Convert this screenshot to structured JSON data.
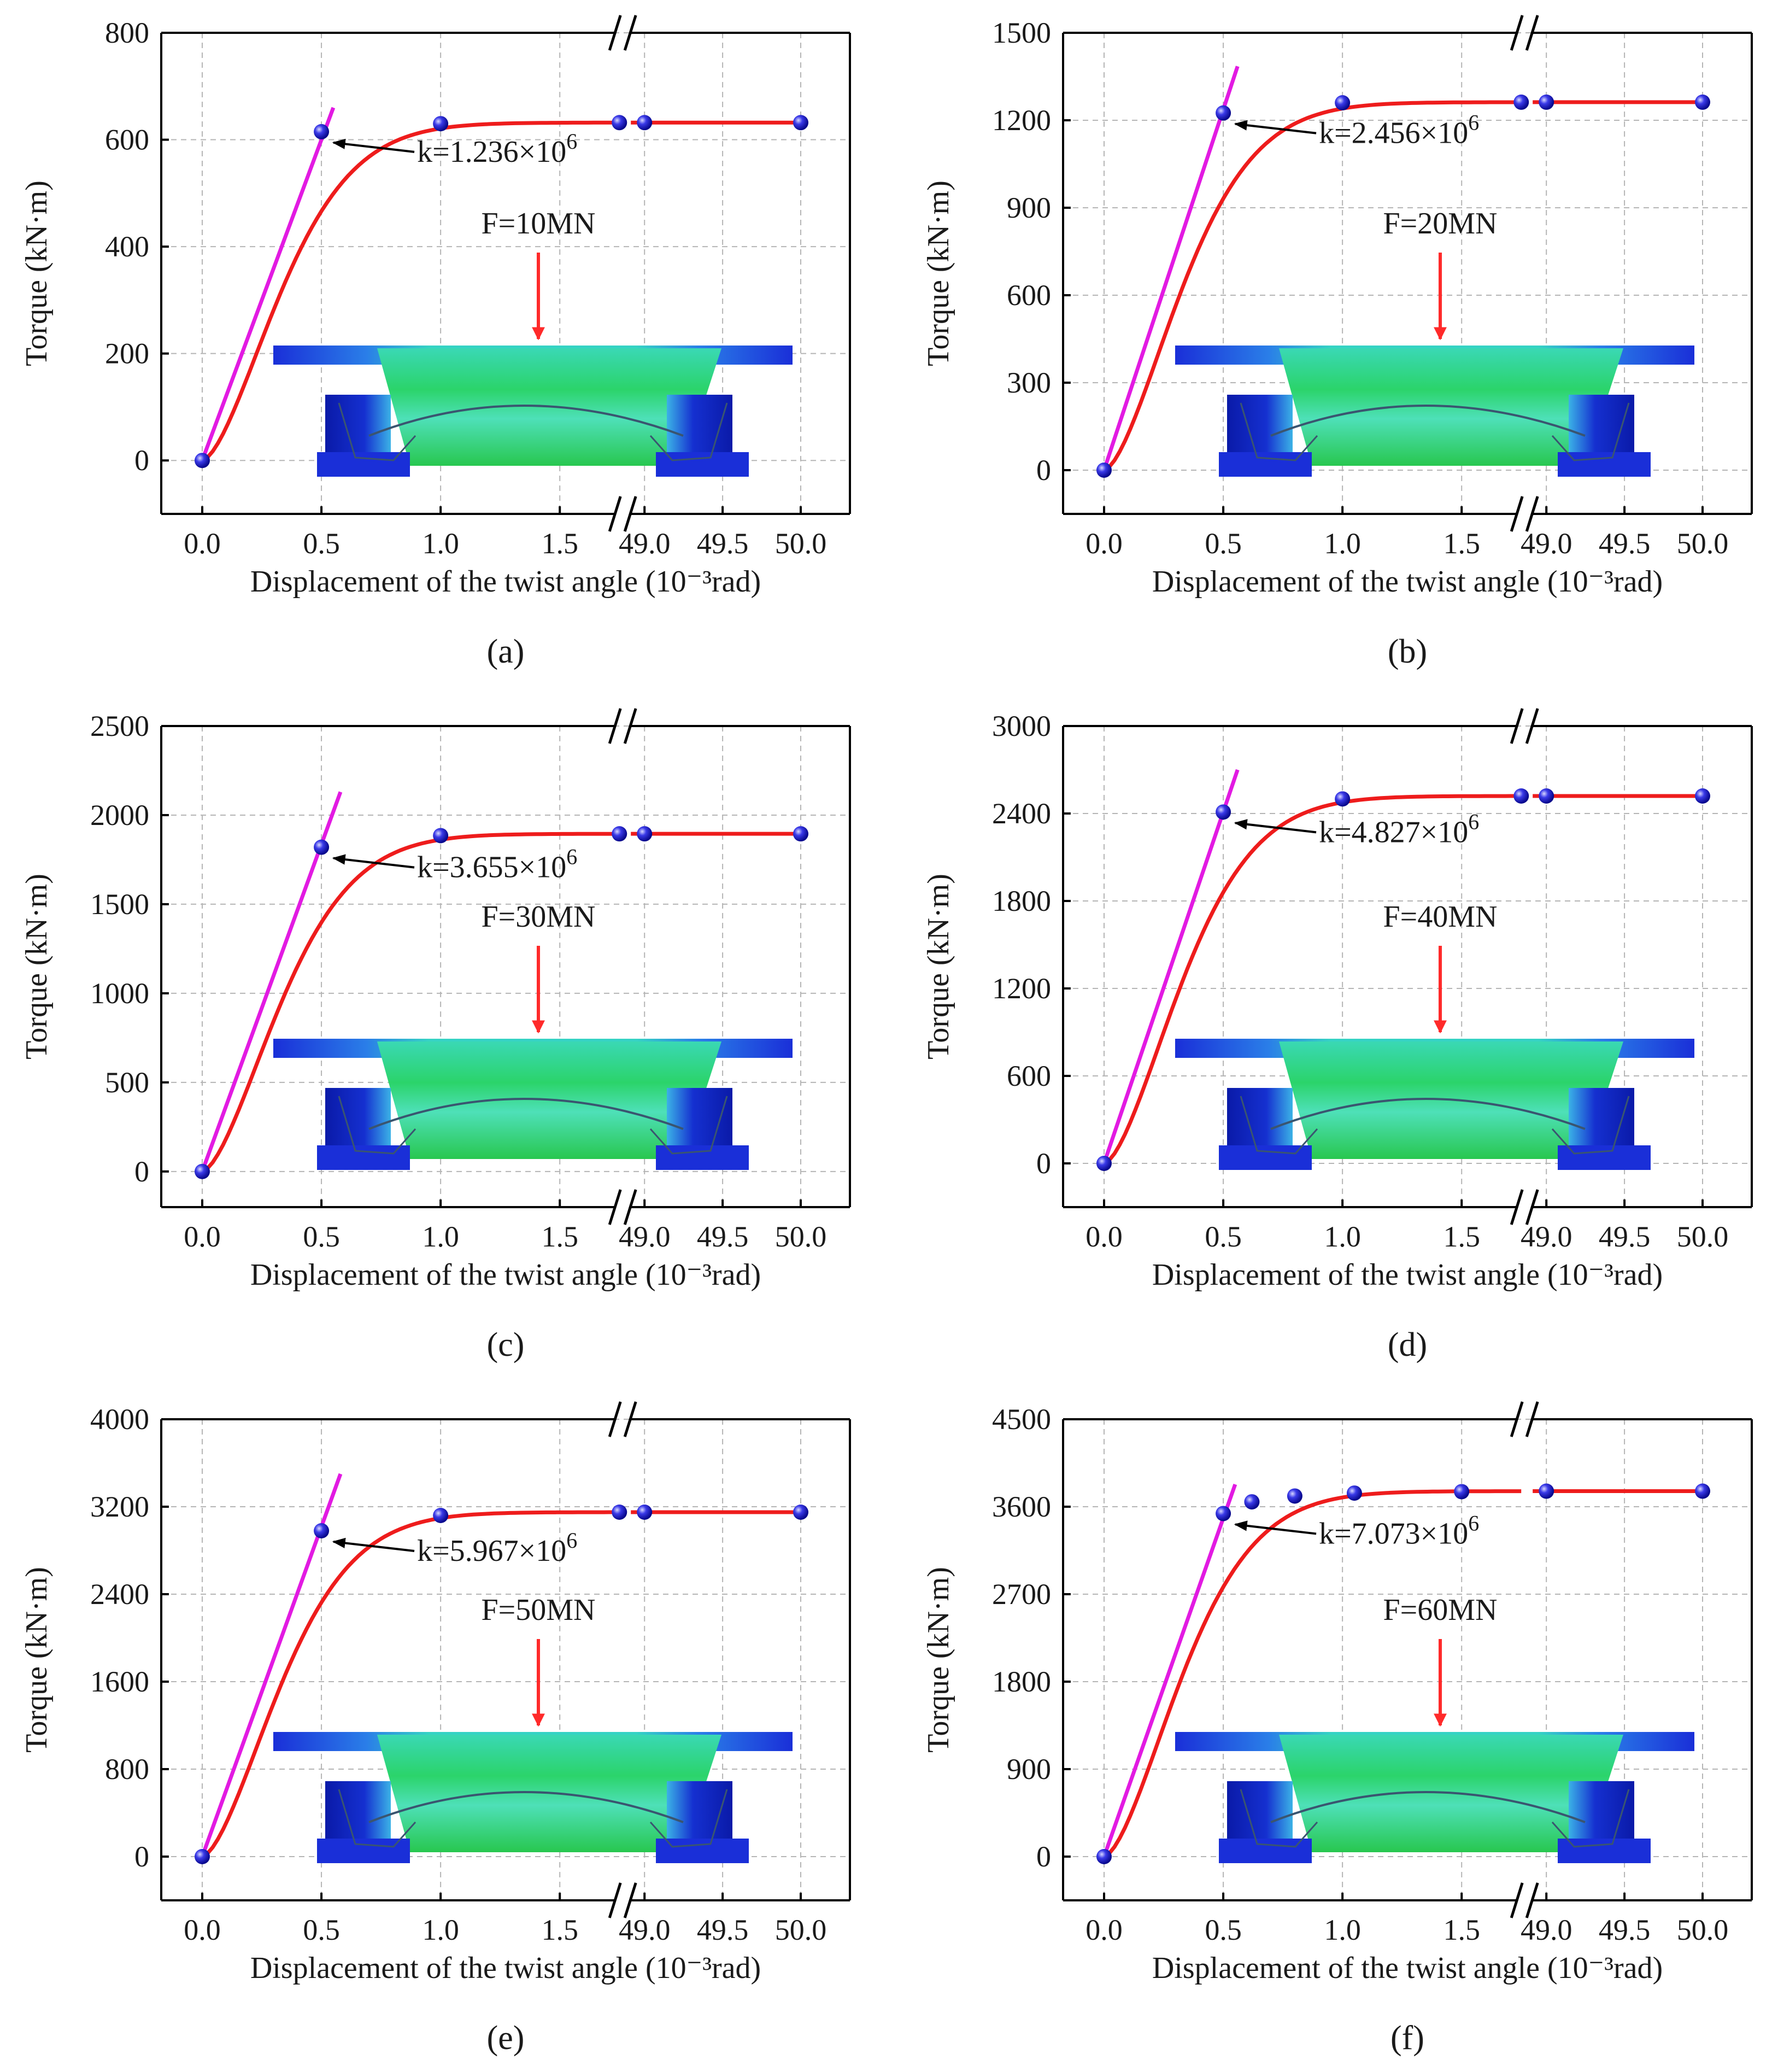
{
  "figure": {
    "xlabel": "Displacement of the twist angle (10⁻³rad)",
    "ylabel": "Torque (kN·m)",
    "x_ticks_left": [
      "0.0",
      "0.5",
      "1.0",
      "1.5"
    ],
    "x_ticks_right": [
      "49.0",
      "49.5",
      "50.0"
    ],
    "break_mark": "//"
  },
  "chart_data": [
    {
      "panel": "a",
      "caption": "(a)",
      "type": "line",
      "title": "",
      "xlabel": "Displacement of the twist angle (10⁻³rad)",
      "ylabel": "Torque (kN·m)",
      "ylim": [
        -100,
        800
      ],
      "yticks": [
        "0",
        "200",
        "400",
        "600",
        "800"
      ],
      "load": "F=10MN",
      "stiffness": "k=1.236×10⁶",
      "k_base": "k=1.236×10",
      "k_exp": "6",
      "markers": [
        [
          0,
          0
        ],
        [
          0.5,
          615
        ],
        [
          1.0,
          630
        ],
        [
          1.75,
          632
        ],
        [
          49.0,
          632
        ],
        [
          50.0,
          632
        ]
      ],
      "tangent": [
        [
          0,
          0
        ],
        [
          0.55,
          660
        ]
      ],
      "grid": true
    },
    {
      "panel": "b",
      "caption": "(b)",
      "type": "line",
      "title": "",
      "xlabel": "Displacement of the twist angle (10⁻³rad)",
      "ylabel": "Torque (kN·m)",
      "ylim": [
        -150,
        1500
      ],
      "yticks": [
        "0",
        "300",
        "600",
        "900",
        "1200",
        "1500"
      ],
      "load": "F=20MN",
      "stiffness": "k=2.456×10⁶",
      "k_base": "k=2.456×10",
      "k_exp": "6",
      "markers": [
        [
          0,
          0
        ],
        [
          0.5,
          1225
        ],
        [
          1.0,
          1260
        ],
        [
          1.75,
          1262
        ],
        [
          49.0,
          1262
        ],
        [
          50.0,
          1262
        ]
      ],
      "tangent": [
        [
          0,
          0
        ],
        [
          0.56,
          1385
        ]
      ],
      "grid": true
    },
    {
      "panel": "c",
      "caption": "(c)",
      "type": "line",
      "title": "",
      "xlabel": "Displacement of the twist angle (10⁻³rad)",
      "ylabel": "Torque (kN·m)",
      "ylim": [
        -200,
        2500
      ],
      "yticks": [
        "0",
        "500",
        "1000",
        "1500",
        "2000",
        "2500"
      ],
      "load": "F=30MN",
      "stiffness": "k=3.655×10⁶",
      "k_base": "k=3.655×10",
      "k_exp": "6",
      "markers": [
        [
          0,
          0
        ],
        [
          0.5,
          1820
        ],
        [
          1.0,
          1885
        ],
        [
          1.75,
          1895
        ],
        [
          49.0,
          1895
        ],
        [
          50.0,
          1895
        ]
      ],
      "tangent": [
        [
          0,
          0
        ],
        [
          0.58,
          2130
        ]
      ],
      "grid": true
    },
    {
      "panel": "d",
      "caption": "(d)",
      "type": "line",
      "title": "",
      "xlabel": "Displacement of the twist angle (10⁻³rad)",
      "ylabel": "Torque (kN·m)",
      "ylim": [
        -300,
        3000
      ],
      "yticks": [
        "0",
        "600",
        "1200",
        "1800",
        "2400",
        "3000"
      ],
      "load": "F=40MN",
      "stiffness": "k=4.827×10⁶",
      "k_base": "k=4.827×10",
      "k_exp": "6",
      "markers": [
        [
          0,
          0
        ],
        [
          0.5,
          2410
        ],
        [
          1.0,
          2500
        ],
        [
          1.75,
          2520
        ],
        [
          49.0,
          2520
        ],
        [
          50.0,
          2520
        ]
      ],
      "tangent": [
        [
          0,
          0
        ],
        [
          0.56,
          2700
        ]
      ],
      "grid": true
    },
    {
      "panel": "e",
      "caption": "(e)",
      "type": "line",
      "title": "",
      "xlabel": "Displacement of the twist angle (10⁻³rad)",
      "ylabel": "Torque (kN·m)",
      "ylim": [
        -400,
        4000
      ],
      "yticks": [
        "0",
        "800",
        "1600",
        "2400",
        "3200",
        "4000"
      ],
      "load": "F=50MN",
      "stiffness": "k=5.967×10⁶",
      "k_base": "k=5.967×10",
      "k_exp": "6",
      "markers": [
        [
          0,
          0
        ],
        [
          0.5,
          2980
        ],
        [
          1.0,
          3120
        ],
        [
          1.75,
          3150
        ],
        [
          49.0,
          3150
        ],
        [
          50.0,
          3150
        ]
      ],
      "tangent": [
        [
          0,
          0
        ],
        [
          0.58,
          3500
        ]
      ],
      "grid": true
    },
    {
      "panel": "f",
      "caption": "(f)",
      "type": "line",
      "title": "",
      "xlabel": "Displacement of the twist angle (10⁻³rad)",
      "ylabel": "Torque (kN·m)",
      "ylim": [
        -450,
        4500
      ],
      "yticks": [
        "0",
        "900",
        "1800",
        "2700",
        "3600",
        "4500"
      ],
      "load": "F=60MN",
      "stiffness": "k=7.073×10⁶",
      "k_base": "k=7.073×10",
      "k_exp": "6",
      "markers": [
        [
          0,
          0
        ],
        [
          0.5,
          3530
        ],
        [
          0.62,
          3650
        ],
        [
          0.8,
          3710
        ],
        [
          1.05,
          3740
        ],
        [
          1.5,
          3755
        ],
        [
          49.0,
          3760
        ],
        [
          50.0,
          3760
        ]
      ],
      "tangent": [
        [
          0,
          0
        ],
        [
          0.55,
          3830
        ]
      ],
      "grid": true
    }
  ]
}
